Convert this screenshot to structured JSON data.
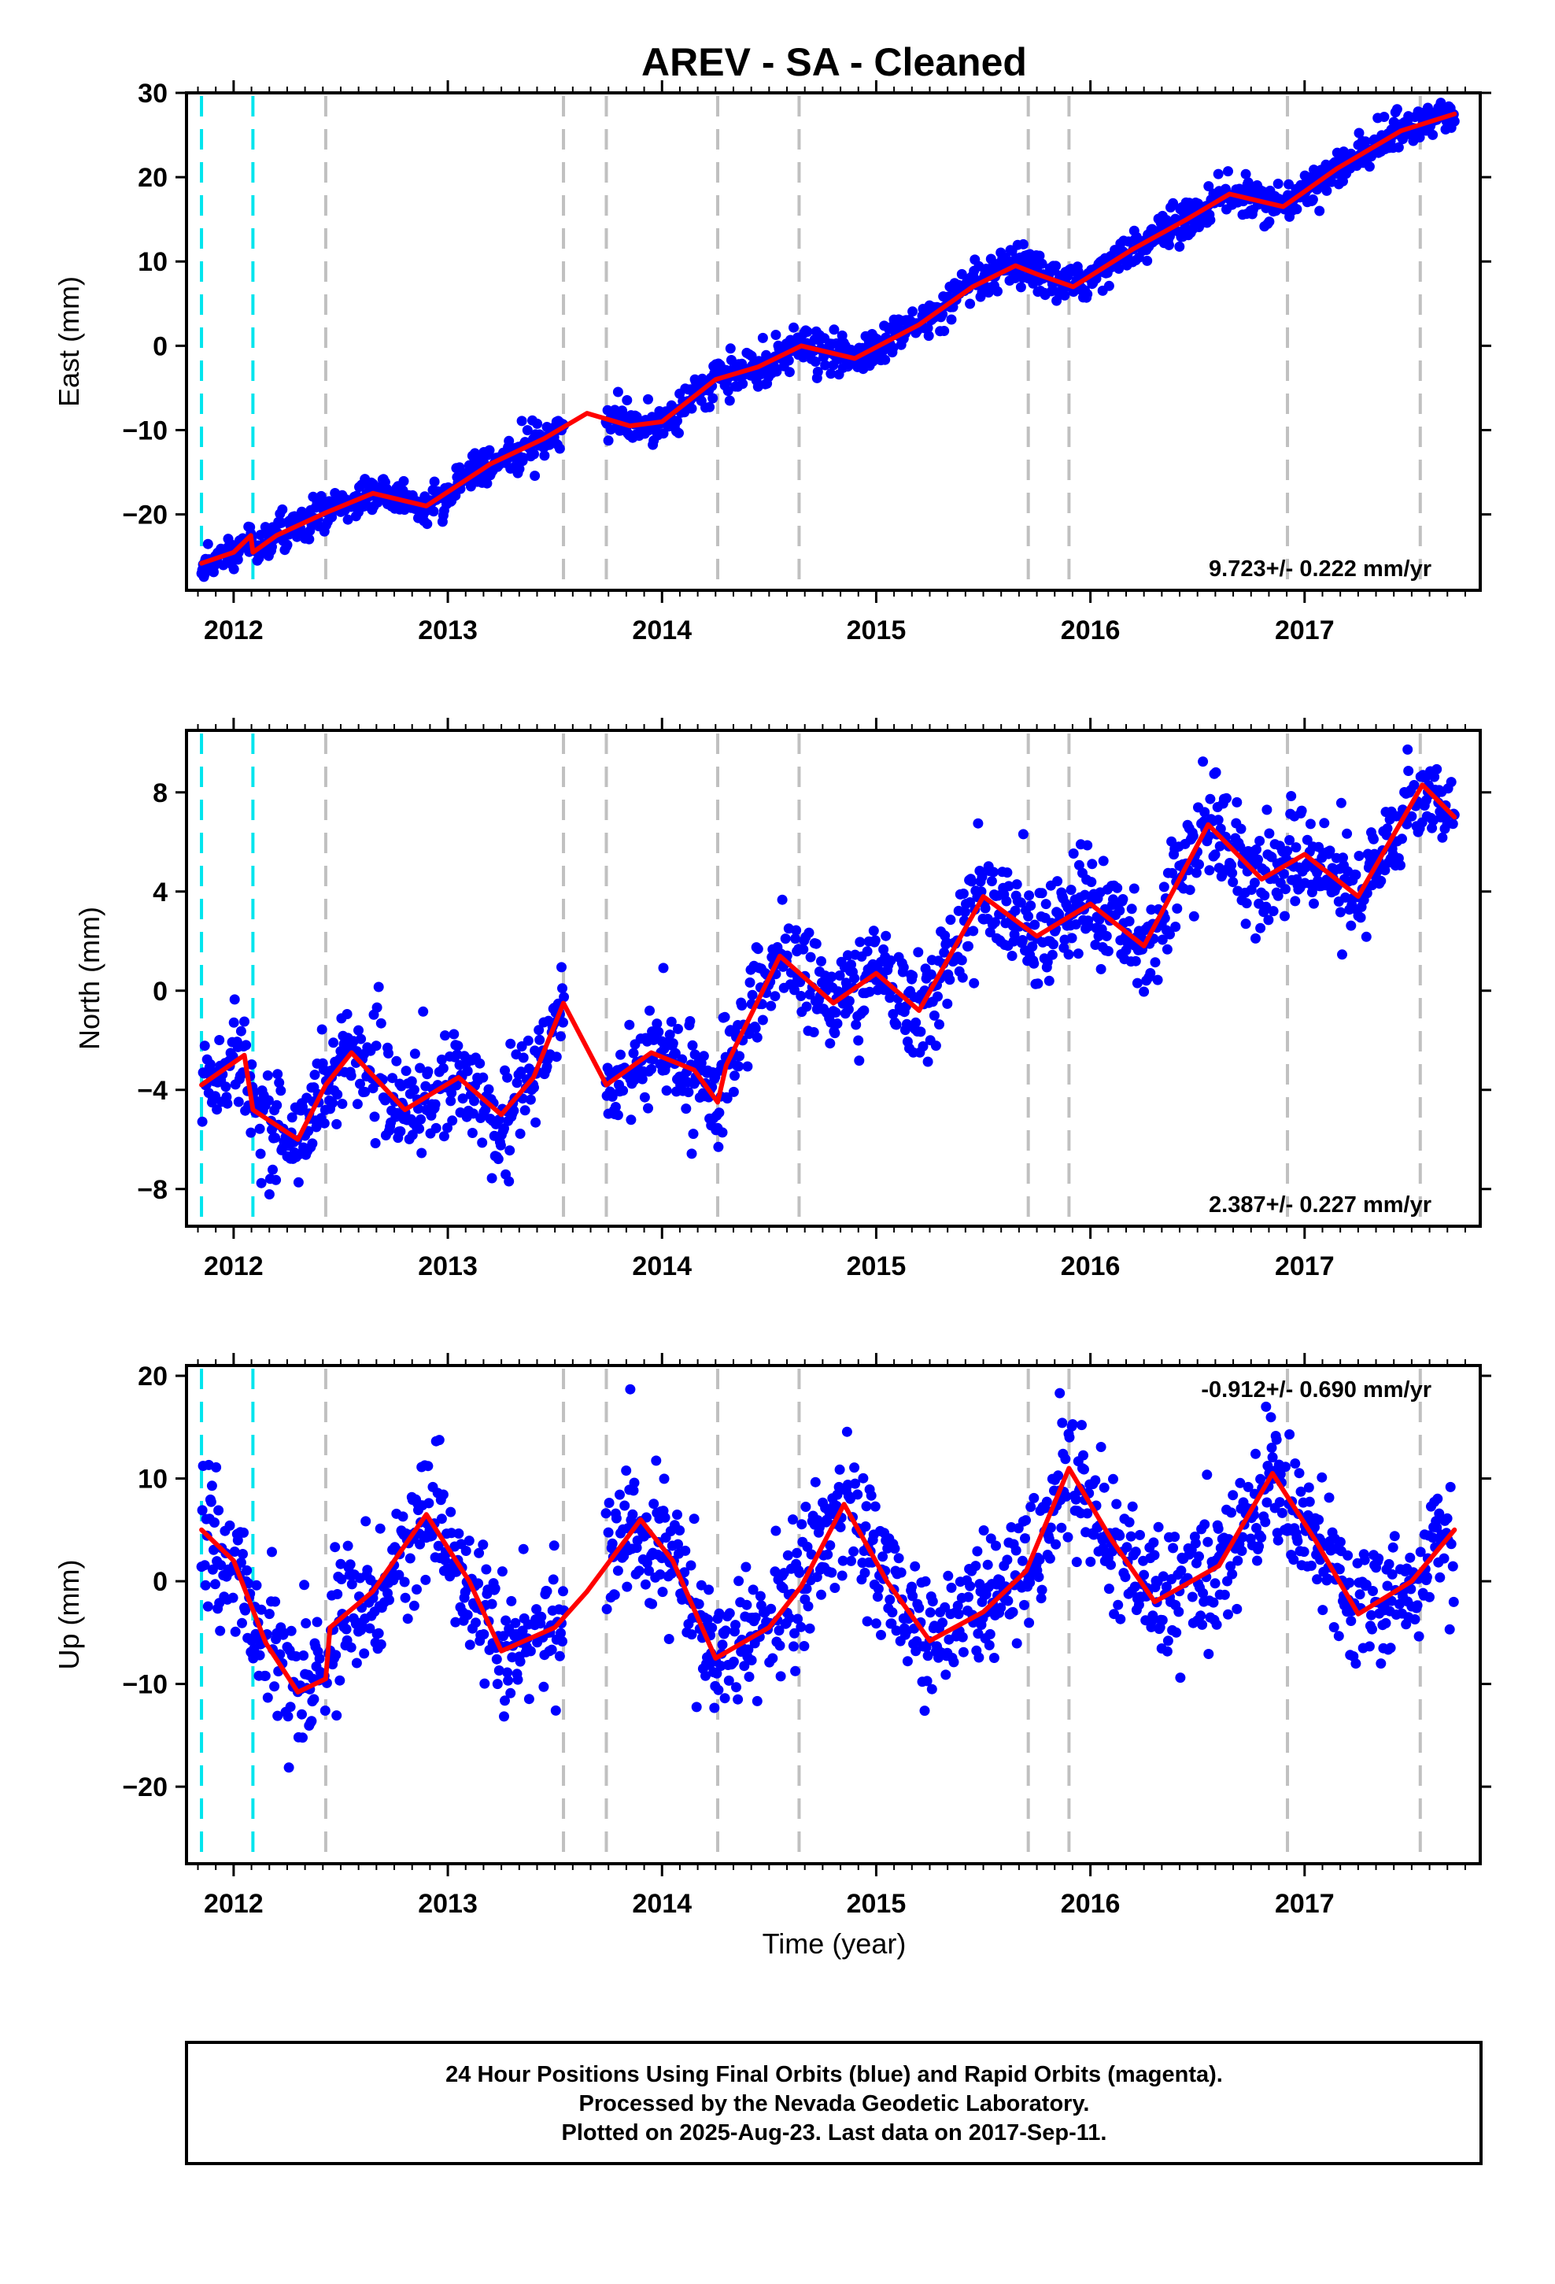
{
  "title": "AREV  - SA - Cleaned",
  "xlabel": "Time (year)",
  "footer": {
    "line1": "24 Hour Positions Using Final Orbits (blue) and Rapid Orbits (magenta).",
    "line2": "Processed by the Nevada Geodetic Laboratory.",
    "line3": "Plotted on 2025-Aug-23. Last data on 2017-Sep-11."
  },
  "colors": {
    "points": "#0000ff",
    "model": "#ff0000",
    "equipment_change": "#00e5ee",
    "event_lines": "#c0c0c0"
  },
  "event_lines": {
    "cyan": [
      2011.85,
      2012.09
    ],
    "gray": [
      2012.43,
      2013.54,
      2013.74,
      2014.26,
      2014.64,
      2015.71,
      2015.9,
      2016.92,
      2017.54
    ]
  },
  "chart_data": [
    {
      "type": "scatter",
      "panel": "east",
      "ylabel": "East (mm)",
      "rate_label": "9.723+/- 0.222 mm/yr",
      "rate_position": "bottom-right",
      "xlim": [
        2011.78,
        2017.82
      ],
      "ylim": [
        -29,
        30
      ],
      "yticks": [
        -20,
        -10,
        0,
        10,
        20,
        30
      ],
      "xticks": [
        2012,
        2013,
        2014,
        2015,
        2016,
        2017
      ],
      "data_range": [
        2011.85,
        2017.7
      ],
      "gap": [
        2013.54,
        2013.74
      ],
      "scatter_sd": 1.1,
      "model_points": [
        [
          2011.85,
          -25.8
        ],
        [
          2012.0,
          -24.5
        ],
        [
          2012.08,
          -22.5
        ],
        [
          2012.09,
          -24.5
        ],
        [
          2012.2,
          -22.5
        ],
        [
          2012.43,
          -19.8
        ],
        [
          2012.65,
          -17.5
        ],
        [
          2012.9,
          -19.0
        ],
        [
          2013.2,
          -14.0
        ],
        [
          2013.45,
          -11.0
        ],
        [
          2013.65,
          -8.0
        ],
        [
          2013.85,
          -9.5
        ],
        [
          2014.0,
          -9.0
        ],
        [
          2014.25,
          -4.0
        ],
        [
          2014.45,
          -2.5
        ],
        [
          2014.65,
          0.0
        ],
        [
          2014.9,
          -1.5
        ],
        [
          2015.2,
          2.5
        ],
        [
          2015.45,
          7.0
        ],
        [
          2015.65,
          9.5
        ],
        [
          2015.75,
          8.5
        ],
        [
          2015.92,
          7.0
        ],
        [
          2016.2,
          11.5
        ],
        [
          2016.45,
          15.0
        ],
        [
          2016.65,
          18.0
        ],
        [
          2016.9,
          16.5
        ],
        [
          2017.15,
          21.0
        ],
        [
          2017.45,
          25.5
        ],
        [
          2017.7,
          27.5
        ]
      ]
    },
    {
      "type": "scatter",
      "panel": "north",
      "ylabel": "North (mm)",
      "rate_label": "2.387+/- 0.227 mm/yr",
      "rate_position": "bottom-right",
      "xlim": [
        2011.78,
        2017.82
      ],
      "ylim": [
        -9.5,
        10.5
      ],
      "yticks": [
        -8,
        -4,
        0,
        4,
        8
      ],
      "xticks": [
        2012,
        2013,
        2014,
        2015,
        2016,
        2017
      ],
      "data_range": [
        2011.85,
        2017.7
      ],
      "gap": [
        2013.54,
        2013.74
      ],
      "scatter_sd": 1.0,
      "model_points": [
        [
          2011.85,
          -3.8
        ],
        [
          2012.05,
          -2.6
        ],
        [
          2012.09,
          -4.8
        ],
        [
          2012.3,
          -6.0
        ],
        [
          2012.43,
          -3.8
        ],
        [
          2012.55,
          -2.5
        ],
        [
          2012.8,
          -4.8
        ],
        [
          2013.05,
          -3.5
        ],
        [
          2013.25,
          -5.0
        ],
        [
          2013.4,
          -3.5
        ],
        [
          2013.54,
          -0.5
        ],
        [
          2013.74,
          -3.8
        ],
        [
          2013.95,
          -2.5
        ],
        [
          2014.15,
          -3.2
        ],
        [
          2014.26,
          -4.5
        ],
        [
          2014.3,
          -3.0
        ],
        [
          2014.55,
          1.4
        ],
        [
          2014.8,
          -0.5
        ],
        [
          2015.0,
          0.7
        ],
        [
          2015.2,
          -0.8
        ],
        [
          2015.5,
          3.8
        ],
        [
          2015.75,
          2.2
        ],
        [
          2016.0,
          3.5
        ],
        [
          2016.25,
          1.8
        ],
        [
          2016.55,
          6.7
        ],
        [
          2016.8,
          4.5
        ],
        [
          2017.0,
          5.5
        ],
        [
          2017.25,
          3.8
        ],
        [
          2017.55,
          8.3
        ],
        [
          2017.7,
          7.0
        ]
      ]
    },
    {
      "type": "scatter",
      "panel": "up",
      "ylabel": "Up (mm)",
      "rate_label": "-0.912+/- 0.690 mm/yr",
      "rate_position": "top-right",
      "xlim": [
        2011.78,
        2017.82
      ],
      "ylim": [
        -27.5,
        21
      ],
      "yticks": [
        -20,
        -10,
        0,
        10,
        20
      ],
      "xticks": [
        2012,
        2013,
        2014,
        2015,
        2016,
        2017
      ],
      "data_range": [
        2011.85,
        2017.7
      ],
      "gap": [
        2013.54,
        2013.74
      ],
      "scatter_sd": 3.2,
      "model_points": [
        [
          2011.85,
          5.0
        ],
        [
          2012.0,
          2.0
        ],
        [
          2012.15,
          -6.0
        ],
        [
          2012.3,
          -10.8
        ],
        [
          2012.43,
          -9.5
        ],
        [
          2012.45,
          -4.5
        ],
        [
          2012.65,
          -1.0
        ],
        [
          2012.9,
          6.5
        ],
        [
          2013.1,
          0.0
        ],
        [
          2013.25,
          -6.8
        ],
        [
          2013.5,
          -4.5
        ],
        [
          2013.65,
          -1.0
        ],
        [
          2013.9,
          6.0
        ],
        [
          2014.05,
          2.0
        ],
        [
          2014.25,
          -7.5
        ],
        [
          2014.5,
          -4.5
        ],
        [
          2014.65,
          -0.5
        ],
        [
          2014.85,
          7.5
        ],
        [
          2015.05,
          0.0
        ],
        [
          2015.25,
          -5.8
        ],
        [
          2015.5,
          -3.0
        ],
        [
          2015.7,
          1.0
        ],
        [
          2015.9,
          11.0
        ],
        [
          2016.1,
          4.0
        ],
        [
          2016.3,
          -2.0
        ],
        [
          2016.6,
          1.5
        ],
        [
          2016.85,
          10.5
        ],
        [
          2017.05,
          4.0
        ],
        [
          2017.25,
          -3.2
        ],
        [
          2017.5,
          0.0
        ],
        [
          2017.7,
          5.0
        ]
      ]
    }
  ]
}
